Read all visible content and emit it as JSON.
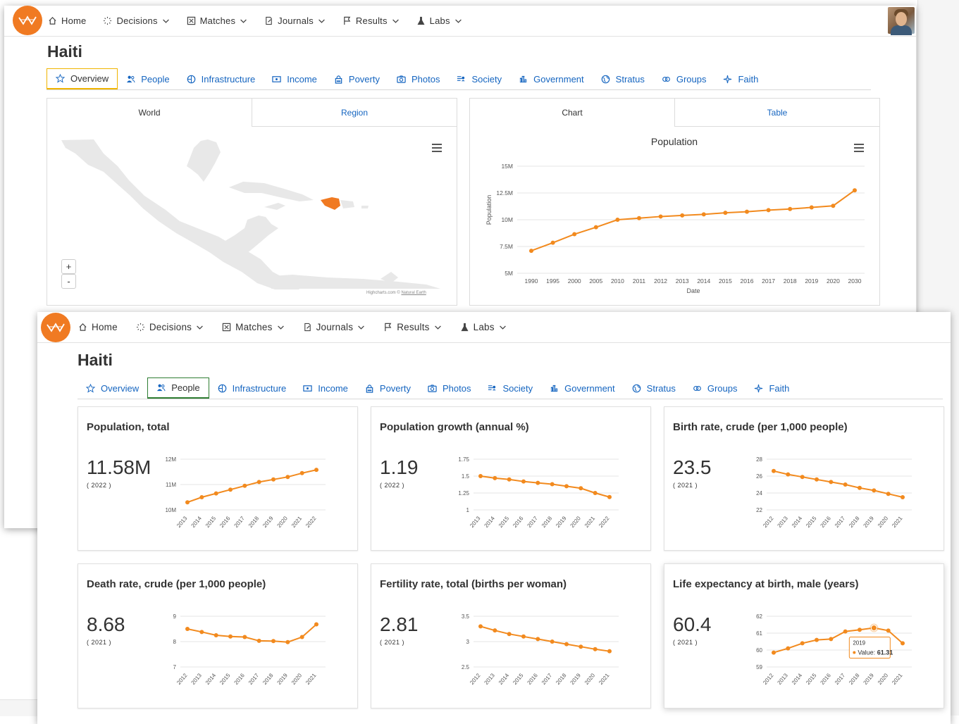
{
  "nav": {
    "items": [
      {
        "label": "Home",
        "icon": "home-icon",
        "dropdown": false
      },
      {
        "label": "Decisions",
        "icon": "decisions-icon",
        "dropdown": true
      },
      {
        "label": "Matches",
        "icon": "matches-icon",
        "dropdown": true
      },
      {
        "label": "Journals",
        "icon": "journals-icon",
        "dropdown": true
      },
      {
        "label": "Results",
        "icon": "flag-icon",
        "dropdown": true
      },
      {
        "label": "Labs",
        "icon": "flask-icon",
        "dropdown": true
      }
    ]
  },
  "page": {
    "title": "Haiti"
  },
  "tabs": [
    {
      "label": "Overview",
      "icon": "star-icon"
    },
    {
      "label": "People",
      "icon": "people-icon"
    },
    {
      "label": "Infrastructure",
      "icon": "globe-icon"
    },
    {
      "label": "Income",
      "icon": "money-icon"
    },
    {
      "label": "Poverty",
      "icon": "lock-icon"
    },
    {
      "label": "Photos",
      "icon": "camera-icon"
    },
    {
      "label": "Society",
      "icon": "society-icon"
    },
    {
      "label": "Government",
      "icon": "building-icon"
    },
    {
      "label": "Stratus",
      "icon": "stratus-icon"
    },
    {
      "label": "Groups",
      "icon": "groups-icon"
    },
    {
      "label": "Faith",
      "icon": "faith-icon"
    }
  ],
  "back_window": {
    "active_tab": "Overview",
    "map_panel": {
      "tabs": [
        "World",
        "Region"
      ],
      "active": "World",
      "zoom_in": "+",
      "zoom_out": "-",
      "credit_text": "Highcharts.com ©",
      "credit_link": "Natural Earth"
    },
    "chart_panel": {
      "tabs": [
        "Chart",
        "Table"
      ],
      "active": "Chart"
    }
  },
  "front_window": {
    "active_tab": "People",
    "cards": [
      {
        "title": "Population, total",
        "value": "11.58M",
        "year": "( 2022 )"
      },
      {
        "title": "Population growth (annual %)",
        "value": "1.19",
        "year": "( 2022 )"
      },
      {
        "title": "Birth rate, crude (per 1,000 people)",
        "value": "23.5",
        "year": "( 2021 )"
      },
      {
        "title": "Death rate, crude (per 1,000 people)",
        "value": "8.68",
        "year": "( 2021 )"
      },
      {
        "title": "Fertility rate, total (births per woman)",
        "value": "2.81",
        "year": "( 2021 )"
      },
      {
        "title": "Life expectancy at birth, male (years)",
        "value": "60.4",
        "year": "( 2021 )"
      }
    ]
  },
  "colors": {
    "accent": "#f07a22",
    "line": "#f28a1e",
    "link": "#1565c0",
    "overview_border": "#f0b400",
    "people_border": "#2e7d32"
  },
  "chart_data": [
    {
      "type": "line",
      "title": "Population",
      "xlabel": "Date",
      "ylabel": "Population",
      "categories": [
        "1990",
        "1995",
        "2000",
        "2005",
        "2010",
        "2011",
        "2012",
        "2013",
        "2014",
        "2015",
        "2016",
        "2017",
        "2018",
        "2019",
        "2020",
        "2030"
      ],
      "values": [
        7.1,
        7.85,
        8.65,
        9.3,
        10.0,
        10.15,
        10.3,
        10.4,
        10.5,
        10.65,
        10.75,
        10.9,
        11.0,
        11.15,
        11.3,
        12.75
      ],
      "yticks": [
        "15M",
        "12.5M",
        "10M",
        "7.5M",
        "5M"
      ],
      "ylim": [
        5,
        15
      ]
    },
    {
      "type": "line",
      "categories": [
        "2013",
        "2014",
        "2015",
        "2016",
        "2017",
        "2018",
        "2019",
        "2020",
        "2021",
        "2022"
      ],
      "values": [
        10.3,
        10.5,
        10.65,
        10.8,
        10.95,
        11.1,
        11.2,
        11.3,
        11.45,
        11.58
      ],
      "yticks": [
        "12M",
        "11M",
        "10M"
      ],
      "ylim": [
        10,
        12
      ]
    },
    {
      "type": "line",
      "categories": [
        "2013",
        "2014",
        "2015",
        "2016",
        "2017",
        "2018",
        "2019",
        "2020",
        "2021",
        "2022"
      ],
      "values": [
        1.5,
        1.47,
        1.45,
        1.42,
        1.4,
        1.38,
        1.35,
        1.32,
        1.25,
        1.19
      ],
      "yticks": [
        "1.75",
        "1.5",
        "1.25",
        "1"
      ],
      "ylim": [
        1,
        1.75
      ]
    },
    {
      "type": "line",
      "categories": [
        "2012",
        "2013",
        "2014",
        "2015",
        "2016",
        "2017",
        "2018",
        "2019",
        "2020",
        "2021"
      ],
      "values": [
        26.6,
        26.2,
        25.9,
        25.6,
        25.3,
        25.0,
        24.6,
        24.3,
        23.9,
        23.5
      ],
      "yticks": [
        "28",
        "26",
        "24",
        "22"
      ],
      "ylim": [
        22,
        28
      ]
    },
    {
      "type": "line",
      "categories": [
        "2012",
        "2013",
        "2014",
        "2015",
        "2016",
        "2017",
        "2018",
        "2019",
        "2020",
        "2021"
      ],
      "values": [
        8.5,
        8.38,
        8.25,
        8.2,
        8.18,
        8.03,
        8.02,
        7.98,
        8.18,
        8.68
      ],
      "yticks": [
        "9",
        "8",
        "7"
      ],
      "ylim": [
        7,
        9
      ]
    },
    {
      "type": "line",
      "categories": [
        "2012",
        "2013",
        "2014",
        "2015",
        "2016",
        "2017",
        "2018",
        "2019",
        "2020",
        "2021"
      ],
      "values": [
        3.3,
        3.22,
        3.15,
        3.1,
        3.05,
        3.0,
        2.95,
        2.9,
        2.85,
        2.81
      ],
      "yticks": [
        "3.5",
        "3",
        "2.5"
      ],
      "ylim": [
        2.5,
        3.5
      ]
    },
    {
      "type": "line",
      "categories": [
        "2012",
        "2013",
        "2014",
        "2015",
        "2016",
        "2017",
        "2018",
        "2019",
        "2020",
        "2021"
      ],
      "values": [
        59.85,
        60.1,
        60.4,
        60.6,
        60.65,
        61.1,
        61.2,
        61.31,
        61.15,
        60.4
      ],
      "yticks": [
        "62",
        "61",
        "60",
        "59"
      ],
      "ylim": [
        59,
        62
      ],
      "tooltip": {
        "year": "2019",
        "label": "Value:",
        "value": "61.31"
      }
    }
  ]
}
